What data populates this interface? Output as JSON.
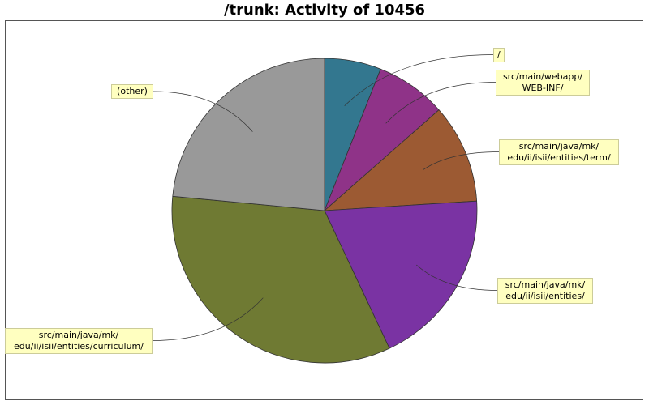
{
  "chart_data": {
    "type": "pie",
    "title": "/trunk: Activity of 10456",
    "slices": [
      {
        "label": "/",
        "value": 6.0,
        "color": "#33778f"
      },
      {
        "label": "src/main/webapp/\nWEB-INF/",
        "value": 7.5,
        "color": "#8f3388"
      },
      {
        "label": "src/main/java/mk/\nedu/ii/isii/entities/term/",
        "value": 10.5,
        "color": "#9c5a33"
      },
      {
        "label": "src/main/java/mk/\nedu/ii/isii/entities/",
        "value": 19.0,
        "color": "#7a33a3"
      },
      {
        "label": "src/main/java/mk/\nedu/ii/isii/entities/curriculum/",
        "value": 33.5,
        "color": "#6f7a33"
      },
      {
        "label": "(other)",
        "value": 23.5,
        "color": "#999999"
      }
    ]
  }
}
